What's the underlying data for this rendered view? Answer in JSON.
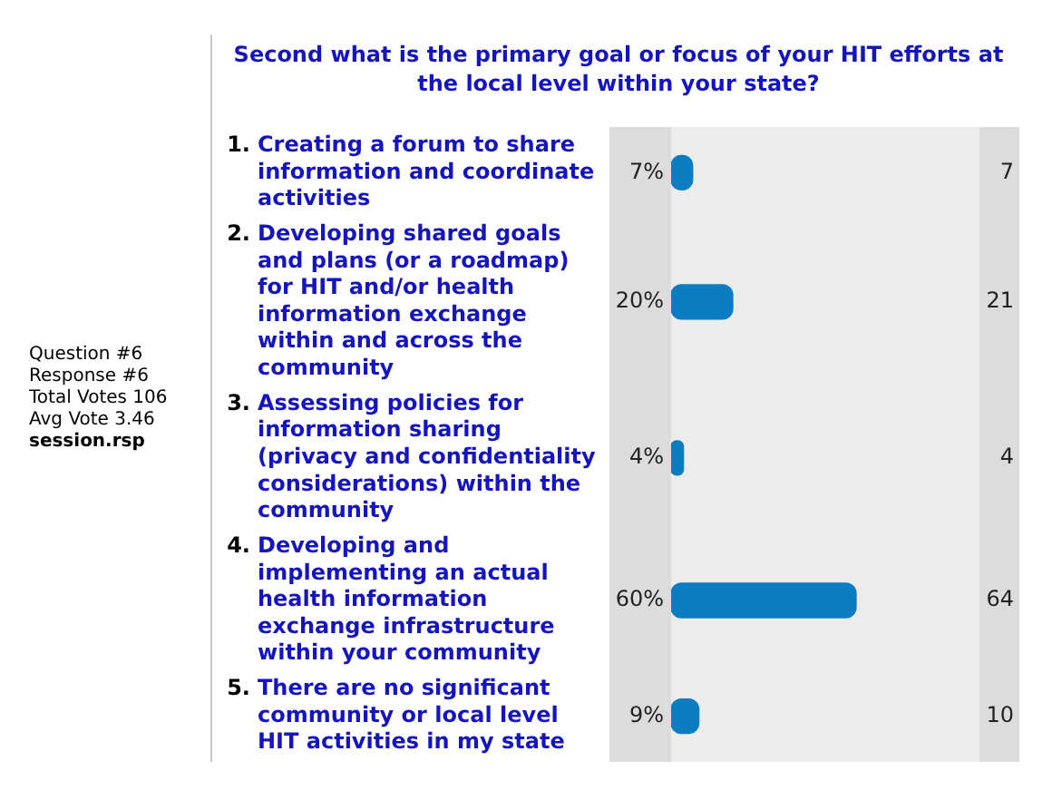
{
  "chart_data": {
    "type": "bar",
    "orientation": "horizontal",
    "title": "Second what is the primary goal or focus of your HIT efforts at the local level within your state?",
    "categories": [
      "1. Creating a forum to share information and coordinate activities",
      "2. Developing shared goals and plans (or a roadmap) for HIT and/or health information exchange within and across the community",
      "3. Assessing policies for information sharing (privacy and confidentiality considerations) within the community",
      "4. Developing and implementing an actual health information exchange infrastructure within your community",
      "5. There are no significant community or local level HIT activities in my state"
    ],
    "values": [
      7,
      20,
      4,
      60,
      9
    ],
    "value_labels": [
      "7%",
      "20%",
      "4%",
      "60%",
      "9%"
    ],
    "color": "#0e7cc0",
    "xlim": [
      0,
      100
    ],
    "annotations": [
      "Question #6",
      "Response #6",
      "Total Votes 106",
      "Avg Vote 3.46",
      "session.rsp",
      "7",
      "21",
      "4",
      "64",
      "10"
    ]
  }
}
